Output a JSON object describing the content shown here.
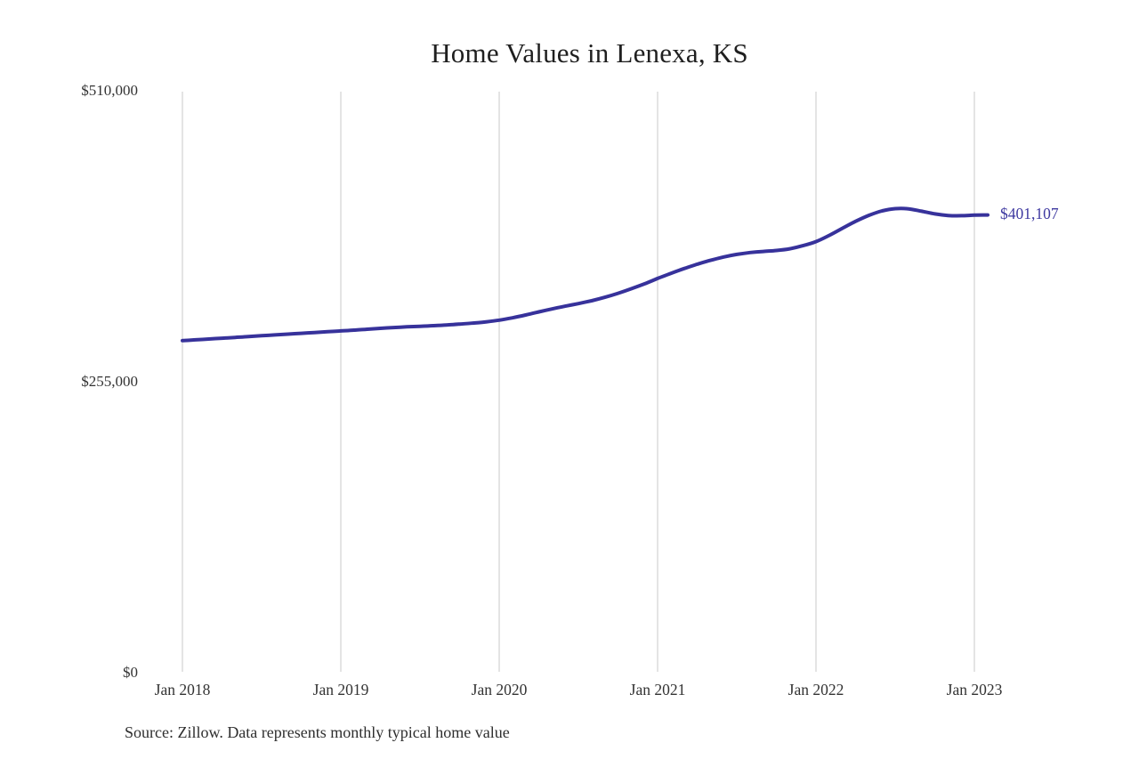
{
  "page": {
    "background_color": "#ffffff"
  },
  "chart_data": {
    "type": "line",
    "title": "Home Values in Lenexa, KS",
    "source_note": "Source: Zillow. Data represents monthly typical home value",
    "end_label": "$401,107",
    "end_value": 401107,
    "line_color": "#37329B",
    "gridline_color": "#C9C9C9",
    "axis_label_color": "#333333",
    "ylim": [
      0,
      510000
    ],
    "grid": "vertical-only",
    "legend_position": "none",
    "y_ticks": [
      {
        "label": "$0",
        "value": 0
      },
      {
        "label": "$255,000",
        "value": 255000
      },
      {
        "label": "$510,000",
        "value": 510000
      }
    ],
    "x_ticks": [
      "Jan 2018",
      "Jan 2019",
      "Jan 2020",
      "Jan 2021",
      "Jan 2022",
      "Jan 2023"
    ],
    "series": [
      {
        "name": "Monthly typical home value",
        "frequency": "monthly",
        "start_month": "Jan 2018",
        "end_month": "Feb 2023",
        "values": [
          291000,
          291700,
          292400,
          293100,
          293800,
          294500,
          295300,
          296000,
          296700,
          297400,
          298100,
          298800,
          299500,
          300200,
          301000,
          301800,
          302500,
          303100,
          303600,
          304100,
          304700,
          305500,
          306400,
          307500,
          309000,
          311000,
          313500,
          316200,
          318800,
          321200,
          323500,
          326000,
          329000,
          332500,
          336500,
          340800,
          345500,
          350000,
          354200,
          358000,
          361400,
          364300,
          366600,
          368200,
          369200,
          370000,
          371500,
          374200,
          377800,
          383300,
          389500,
          395600,
          400800,
          404700,
          406700,
          406500,
          404400,
          402100,
          400700,
          400500,
          401000,
          401107
        ]
      }
    ]
  }
}
